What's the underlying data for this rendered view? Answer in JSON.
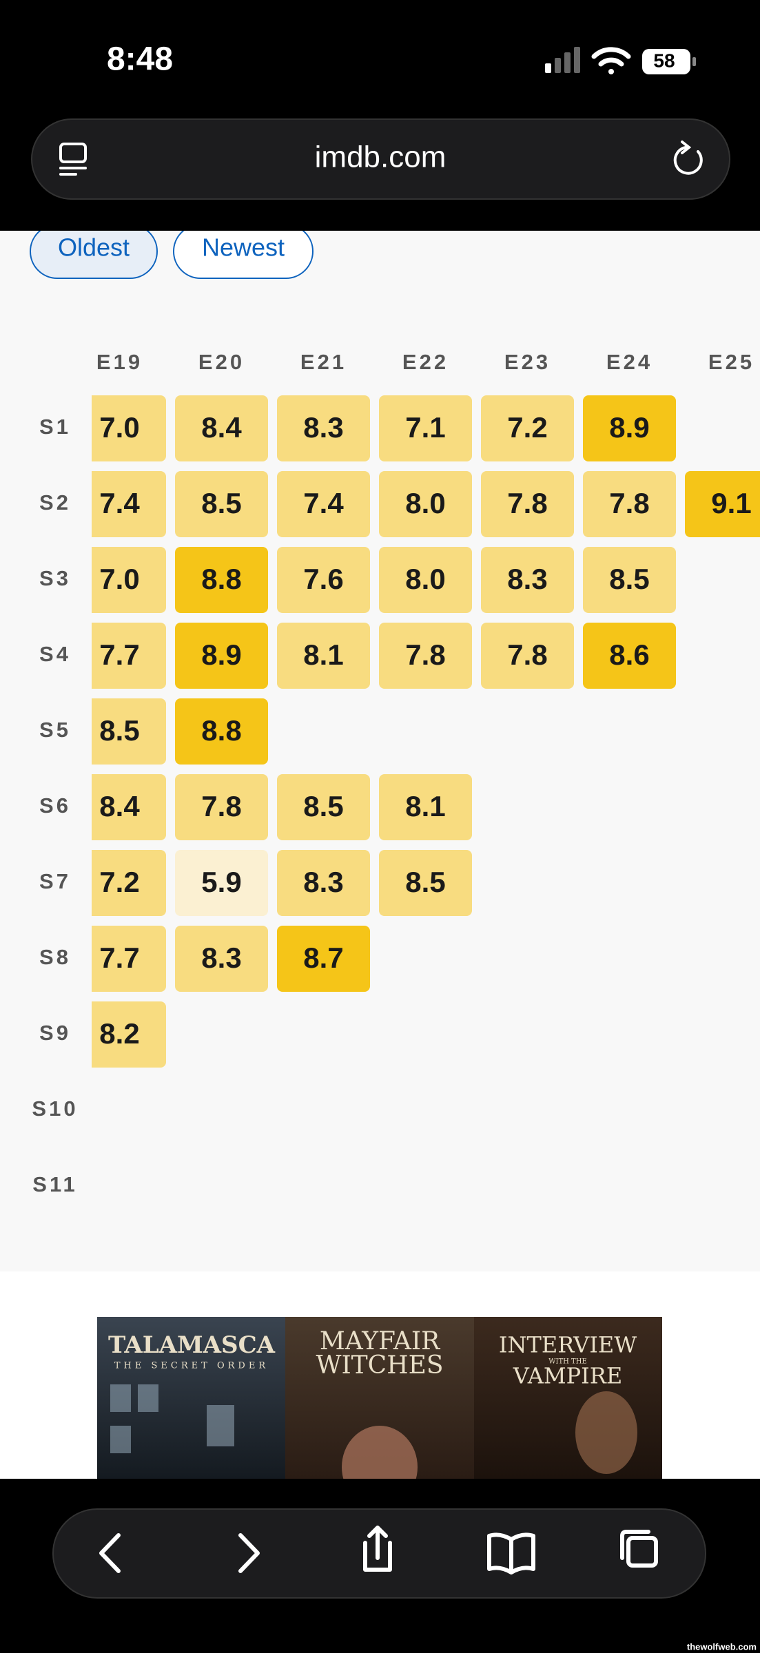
{
  "status_bar": {
    "time": "8:48",
    "battery": "58"
  },
  "address_bar": {
    "url": "imdb.com"
  },
  "sort_buttons": [
    "Oldest",
    "Newest"
  ],
  "ratings": {
    "columns": [
      "E19",
      "E20",
      "E21",
      "E22",
      "E23",
      "E24",
      "E25"
    ],
    "rows": [
      {
        "label": "S1",
        "cells": [
          {
            "rating": "7.0",
            "color": "#f8dc80"
          },
          {
            "rating": "8.4",
            "color": "#f8dc80"
          },
          {
            "rating": "8.3",
            "color": "#f8dc80"
          },
          {
            "rating": "7.1",
            "color": "#f8dc80"
          },
          {
            "rating": "7.2",
            "color": "#f8dc80"
          },
          {
            "rating": "8.9",
            "color": "#f5c518"
          },
          null
        ]
      },
      {
        "label": "S2",
        "cells": [
          {
            "rating": "7.4",
            "color": "#f8dc80"
          },
          {
            "rating": "8.5",
            "color": "#f8dc80"
          },
          {
            "rating": "7.4",
            "color": "#f8dc80"
          },
          {
            "rating": "8.0",
            "color": "#f8dc80"
          },
          {
            "rating": "7.8",
            "color": "#f8dc80"
          },
          {
            "rating": "7.8",
            "color": "#f8dc80"
          },
          {
            "rating": "9.1",
            "color": "#f5c518"
          }
        ]
      },
      {
        "label": "S3",
        "cells": [
          {
            "rating": "7.0",
            "color": "#f8dc80"
          },
          {
            "rating": "8.8",
            "color": "#f5c518"
          },
          {
            "rating": "7.6",
            "color": "#f8dc80"
          },
          {
            "rating": "8.0",
            "color": "#f8dc80"
          },
          {
            "rating": "8.3",
            "color": "#f8dc80"
          },
          {
            "rating": "8.5",
            "color": "#f8dc80"
          },
          null
        ]
      },
      {
        "label": "S4",
        "cells": [
          {
            "rating": "7.7",
            "color": "#f8dc80"
          },
          {
            "rating": "8.9",
            "color": "#f5c518"
          },
          {
            "rating": "8.1",
            "color": "#f8dc80"
          },
          {
            "rating": "7.8",
            "color": "#f8dc80"
          },
          {
            "rating": "7.8",
            "color": "#f8dc80"
          },
          {
            "rating": "8.6",
            "color": "#f5c518"
          },
          null
        ]
      },
      {
        "label": "S5",
        "cells": [
          {
            "rating": "8.5",
            "color": "#f8dc80"
          },
          {
            "rating": "8.8",
            "color": "#f5c518"
          },
          null,
          null,
          null,
          null,
          null
        ]
      },
      {
        "label": "S6",
        "cells": [
          {
            "rating": "8.4",
            "color": "#f8dc80"
          },
          {
            "rating": "7.8",
            "color": "#f8dc80"
          },
          {
            "rating": "8.5",
            "color": "#f8dc80"
          },
          {
            "rating": "8.1",
            "color": "#f8dc80"
          },
          null,
          null,
          null
        ]
      },
      {
        "label": "S7",
        "cells": [
          {
            "rating": "7.2",
            "color": "#f8dc80"
          },
          {
            "rating": "5.9",
            "color": "#fbf0d2"
          },
          {
            "rating": "8.3",
            "color": "#f8dc80"
          },
          {
            "rating": "8.5",
            "color": "#f8dc80"
          },
          null,
          null,
          null
        ]
      },
      {
        "label": "S8",
        "cells": [
          {
            "rating": "7.7",
            "color": "#f8dc80"
          },
          {
            "rating": "8.3",
            "color": "#f8dc80"
          },
          {
            "rating": "8.7",
            "color": "#f5c518"
          },
          null,
          null,
          null,
          null
        ]
      },
      {
        "label": "S9",
        "cells": [
          {
            "rating": "8.2",
            "color": "#f8dc80"
          },
          null,
          null,
          null,
          null,
          null,
          null
        ]
      },
      {
        "label": "S10",
        "cells": [
          null,
          null,
          null,
          null,
          null,
          null,
          null
        ]
      },
      {
        "label": "S11",
        "cells": [
          null,
          null,
          null,
          null,
          null,
          null,
          null
        ]
      }
    ]
  },
  "posters": [
    {
      "title": "TALAMASCA",
      "subtitle": "THE SECRET ORDER"
    },
    {
      "title": "MAYFAIR",
      "subtitle": "WITCHES"
    },
    {
      "title": "INTERVIEW",
      "subtitle": "WITH THE",
      "subtitle2": "VAMPIRE"
    }
  ],
  "watermark": "thewolfweb.com"
}
